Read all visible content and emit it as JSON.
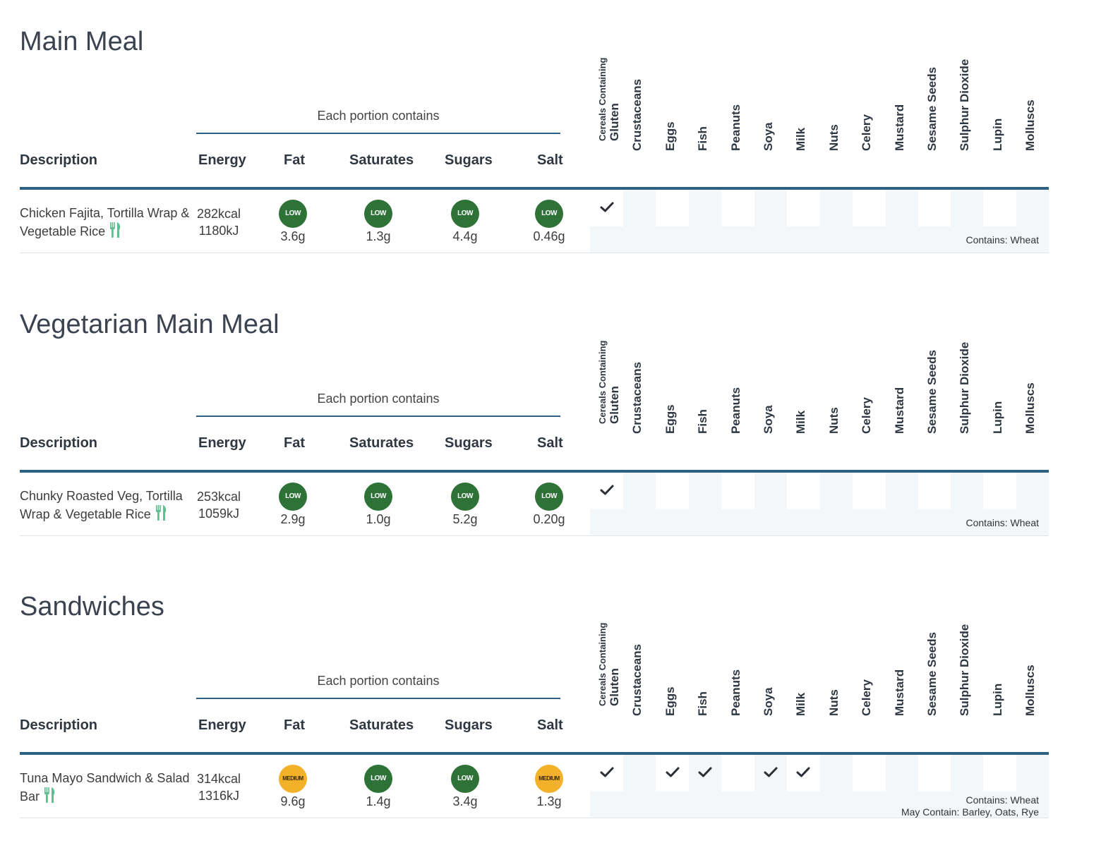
{
  "headers": {
    "description": "Description",
    "energy": "Energy",
    "fat": "Fat",
    "saturates": "Saturates",
    "sugars": "Sugars",
    "salt": "Salt",
    "portion": "Each portion contains"
  },
  "allergens": [
    {
      "small": "Cereals Containing",
      "label": "Gluten"
    },
    {
      "label": "Crustaceans"
    },
    {
      "label": "Eggs"
    },
    {
      "label": "Fish"
    },
    {
      "label": "Peanuts"
    },
    {
      "label": "Soya"
    },
    {
      "label": "Milk"
    },
    {
      "label": "Nuts"
    },
    {
      "label": "Celery"
    },
    {
      "label": "Mustard"
    },
    {
      "label": "Sesame Seeds"
    },
    {
      "label": "Sulphur Dioxide"
    },
    {
      "label": "Lupin"
    },
    {
      "label": "Molluscs"
    }
  ],
  "colors": {
    "low": "#2f7238",
    "medium": "#f3b12a",
    "rule": "#2c6184",
    "fork_icon": "#5fbf8e"
  },
  "sections": [
    {
      "title": "Main Meal",
      "item": {
        "description": "Chicken Fajita, Tortilla Wrap & Vegetable Rice",
        "kcal": "282kcal",
        "kj": "1180kJ",
        "fat": {
          "level": "LOW",
          "value": "3.6g"
        },
        "saturates": {
          "level": "LOW",
          "value": "1.3g"
        },
        "sugars": {
          "level": "LOW",
          "value": "4.4g"
        },
        "salt": {
          "level": "LOW",
          "value": "0.46g"
        },
        "allergens_present": [
          true,
          false,
          false,
          false,
          false,
          false,
          false,
          false,
          false,
          false,
          false,
          false,
          false,
          false
        ],
        "contains": [
          "Contains: Wheat"
        ]
      }
    },
    {
      "title": "Vegetarian Main Meal",
      "item": {
        "description": "Chunky Roasted Veg, Tortilla Wrap & Vegetable Rice",
        "kcal": "253kcal",
        "kj": "1059kJ",
        "fat": {
          "level": "LOW",
          "value": "2.9g"
        },
        "saturates": {
          "level": "LOW",
          "value": "1.0g"
        },
        "sugars": {
          "level": "LOW",
          "value": "5.2g"
        },
        "salt": {
          "level": "LOW",
          "value": "0.20g"
        },
        "allergens_present": [
          true,
          false,
          false,
          false,
          false,
          false,
          false,
          false,
          false,
          false,
          false,
          false,
          false,
          false
        ],
        "contains": [
          "Contains: Wheat"
        ]
      }
    },
    {
      "title": "Sandwiches",
      "item": {
        "description": "Tuna Mayo Sandwich & Salad Bar",
        "kcal": "314kcal",
        "kj": "1316kJ",
        "fat": {
          "level": "MEDIUM",
          "value": "9.6g"
        },
        "saturates": {
          "level": "LOW",
          "value": "1.4g"
        },
        "sugars": {
          "level": "LOW",
          "value": "3.4g"
        },
        "salt": {
          "level": "MEDIUM",
          "value": "1.3g"
        },
        "allergens_present": [
          true,
          false,
          true,
          true,
          false,
          true,
          true,
          false,
          false,
          false,
          false,
          false,
          false,
          false
        ],
        "contains": [
          "Contains: Wheat",
          "May Contain: Barley, Oats, Rye"
        ]
      }
    }
  ]
}
